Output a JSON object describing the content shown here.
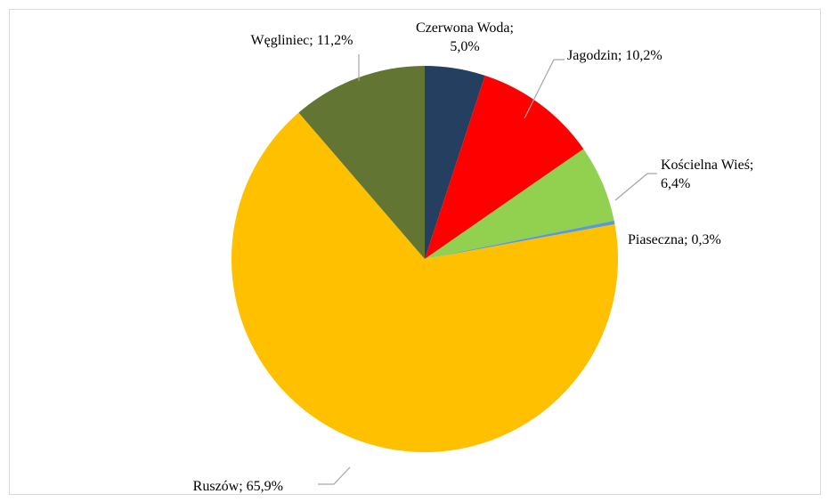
{
  "chart_data": {
    "type": "pie",
    "title": "",
    "slices": [
      {
        "label": "Czerwona Woda",
        "value": 5.0,
        "display": "Czerwona Woda;|5,0%",
        "color": "#243f60"
      },
      {
        "label": "Jagodzin",
        "value": 10.2,
        "display": "Jagodzin; 10,2%",
        "color": "#ff0000"
      },
      {
        "label": "Kościelna Wieś",
        "value": 6.4,
        "display": "Kościelna Wieś;|6,4%",
        "color": "#92d050"
      },
      {
        "label": "Piaseczna",
        "value": 0.3,
        "display": "Piaseczna; 0,3%",
        "color": "#5b9bd5"
      },
      {
        "label": "Ruszów",
        "value": 65.9,
        "display": "Ruszów; 65,9%",
        "color": "#ffc000"
      },
      {
        "label": "Węgliniec",
        "value": 11.2,
        "display": "Węgliniec; 11,2%",
        "color": "#637532"
      }
    ],
    "start_angle_deg": 0,
    "direction": "clockwise",
    "legend": "none",
    "label_connector_color": "#a6a6a6"
  }
}
